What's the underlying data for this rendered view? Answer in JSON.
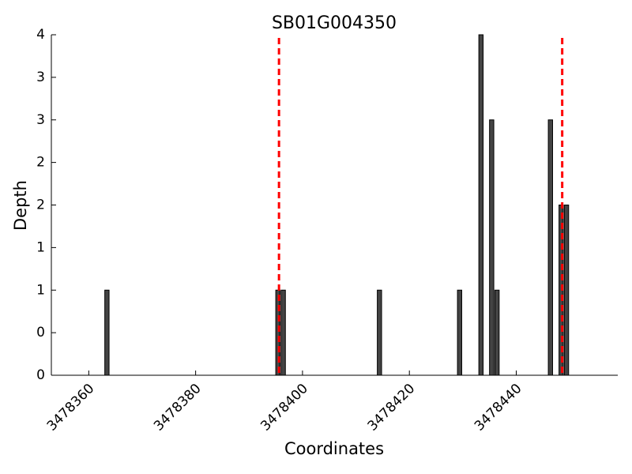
{
  "chart_data": {
    "type": "bar",
    "title": "SB01G004350",
    "x_label": "Coordinates",
    "y_label": "Depth",
    "x": [
      3478363,
      3478395,
      3478396,
      3478414,
      3478429,
      3478433,
      3478435,
      3478436,
      3478446,
      3478448,
      3478449
    ],
    "values": [
      1,
      1,
      1,
      1,
      1,
      4,
      3,
      1,
      3,
      2,
      2
    ],
    "color": "#444444",
    "vlines": [
      3478395.6,
      3478448.6
    ],
    "vline_color": "#ff0000",
    "xlim": [
      3478353,
      3478459
    ],
    "xticks": [
      3478360,
      3478380,
      3478400,
      3478420,
      3478440
    ],
    "ylim": [
      0,
      4
    ],
    "yticks": [
      0,
      {
        "value": 0.5,
        "label": "0"
      },
      1,
      {
        "value": 1.5,
        "label": "1"
      },
      2,
      {
        "value": 2.5,
        "label": "2"
      },
      3,
      {
        "value": 3.5,
        "label": "3"
      },
      4
    ]
  }
}
